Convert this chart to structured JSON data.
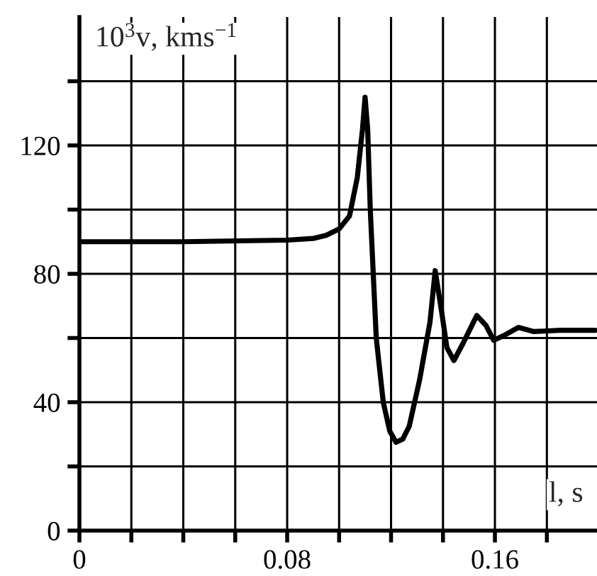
{
  "chart_data": {
    "type": "line",
    "ylabel": "10$^{3}$v, kms$^{−1}$",
    "xlabel": "l, s",
    "series": [
      {
        "color": "#000000",
        "x": [
          0,
          0.04,
          0.08,
          0.09,
          0.095,
          0.1,
          0.104,
          0.107,
          0.109,
          0.11,
          0.111,
          0.112,
          0.1143,
          0.117,
          0.1195,
          0.1219,
          0.1245,
          0.127,
          0.131,
          0.135,
          0.137,
          0.1395,
          0.1415,
          0.1442,
          0.1475,
          0.153,
          0.1565,
          0.1595,
          0.164,
          0.169,
          0.175,
          0.185,
          0.1986
        ],
        "values": [
          90,
          90,
          90.5,
          91,
          92,
          94,
          98,
          110,
          125,
          135,
          125,
          100,
          60,
          40,
          31,
          27.5,
          28.5,
          32.5,
          47,
          65,
          81,
          68,
          57,
          53,
          58,
          67,
          64,
          59.3,
          61,
          63.3,
          62,
          62.4,
          62.4
        ]
      }
    ],
    "xlim": [
      0,
      0.2
    ],
    "ylim": [
      0,
      160
    ],
    "xticks": [
      0,
      {
        "value": 0.02,
        "label": null
      },
      {
        "value": 0.04,
        "label": null
      },
      {
        "value": 0.06,
        "label": null
      },
      0.08,
      {
        "value": 0.1,
        "label": null
      },
      {
        "value": 0.12,
        "label": null
      },
      {
        "value": 0.14,
        "label": null
      },
      0.16,
      {
        "value": 0.18,
        "label": null
      }
    ],
    "yticks": [
      0,
      {
        "value": 20,
        "label": null
      },
      40,
      {
        "value": 60,
        "label": null
      },
      80,
      {
        "value": 100,
        "label": null
      },
      120,
      {
        "value": 140,
        "label": null
      }
    ],
    "grid": true,
    "marker": "none",
    "line_style": "solid"
  }
}
